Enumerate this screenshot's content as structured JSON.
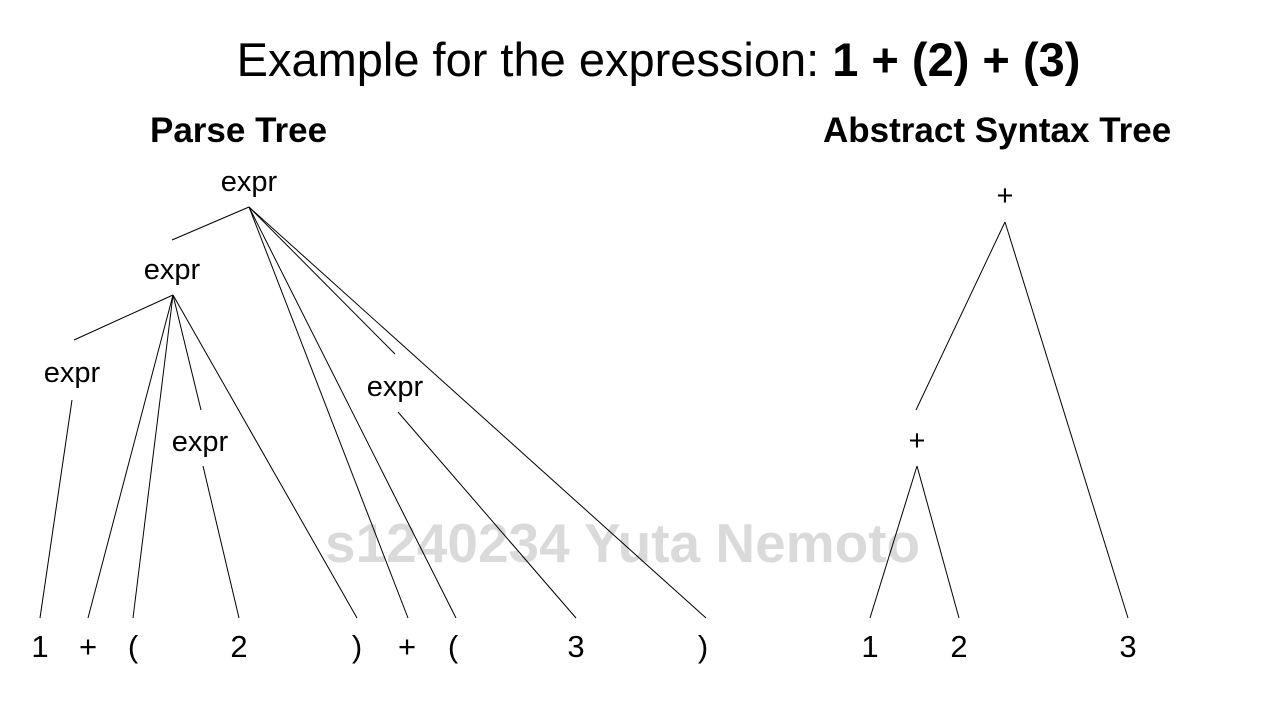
{
  "title": {
    "prefix": "Example for the expression: ",
    "expression": "1 + (2) + (3)"
  },
  "parse_tree": {
    "heading": "Parse Tree",
    "nonterminal": "expr",
    "leaves": [
      "1",
      "+",
      "(",
      "2",
      ")",
      "+",
      "(",
      "3",
      ")"
    ]
  },
  "ast": {
    "heading": "Abstract Syntax Tree",
    "root": "+",
    "inner": "+",
    "leaves": [
      "1",
      "2",
      "3"
    ]
  },
  "watermark": "s1240234 Yuta Nemoto",
  "colors": {
    "text": "#000000",
    "edges": "#000000",
    "background": "#ffffff"
  }
}
